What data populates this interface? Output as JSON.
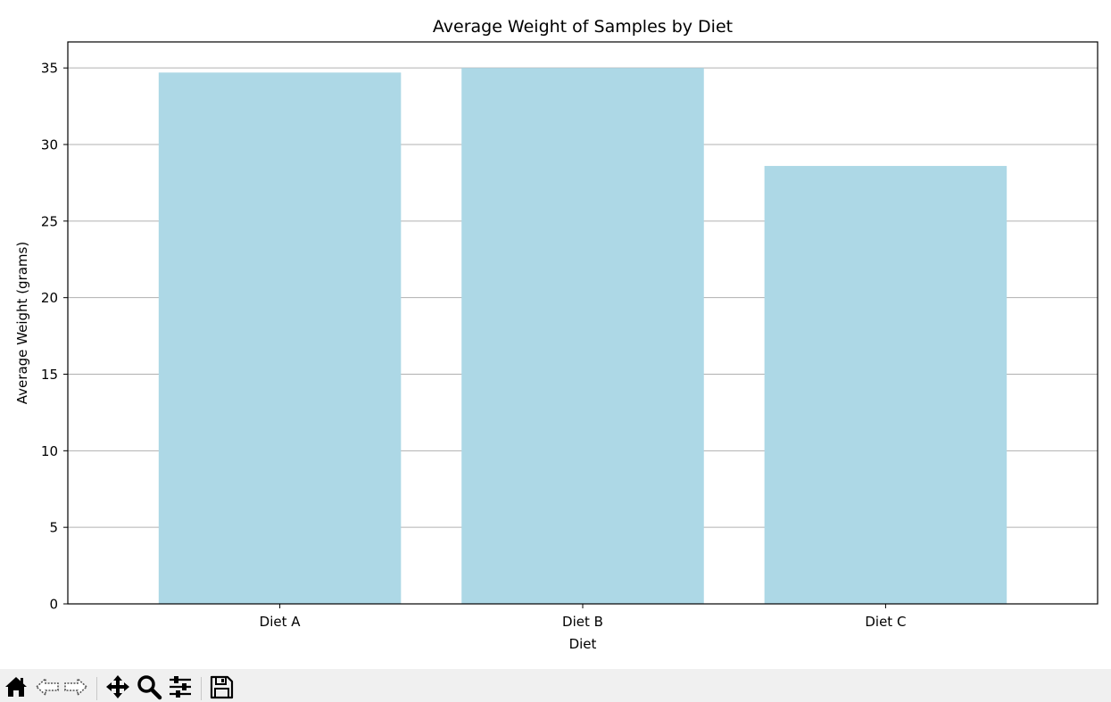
{
  "chart_data": {
    "type": "bar",
    "title": "Average Weight of Samples by Diet",
    "xlabel": "Diet",
    "ylabel": "Average Weight (grams)",
    "categories": [
      "Diet A",
      "Diet B",
      "Diet C"
    ],
    "values": [
      34.7,
      35.0,
      28.6
    ],
    "ylim": [
      0,
      36.7
    ],
    "yticks": [
      0,
      5,
      10,
      15,
      20,
      25,
      30,
      35
    ],
    "grid": "y",
    "bar_color": "#add8e6",
    "grid_color": "#b0b0b0"
  },
  "toolbar": {
    "icons": [
      "home-icon",
      "back-icon",
      "forward-icon",
      "pan-icon",
      "zoom-icon",
      "configure-icon",
      "save-icon"
    ]
  }
}
